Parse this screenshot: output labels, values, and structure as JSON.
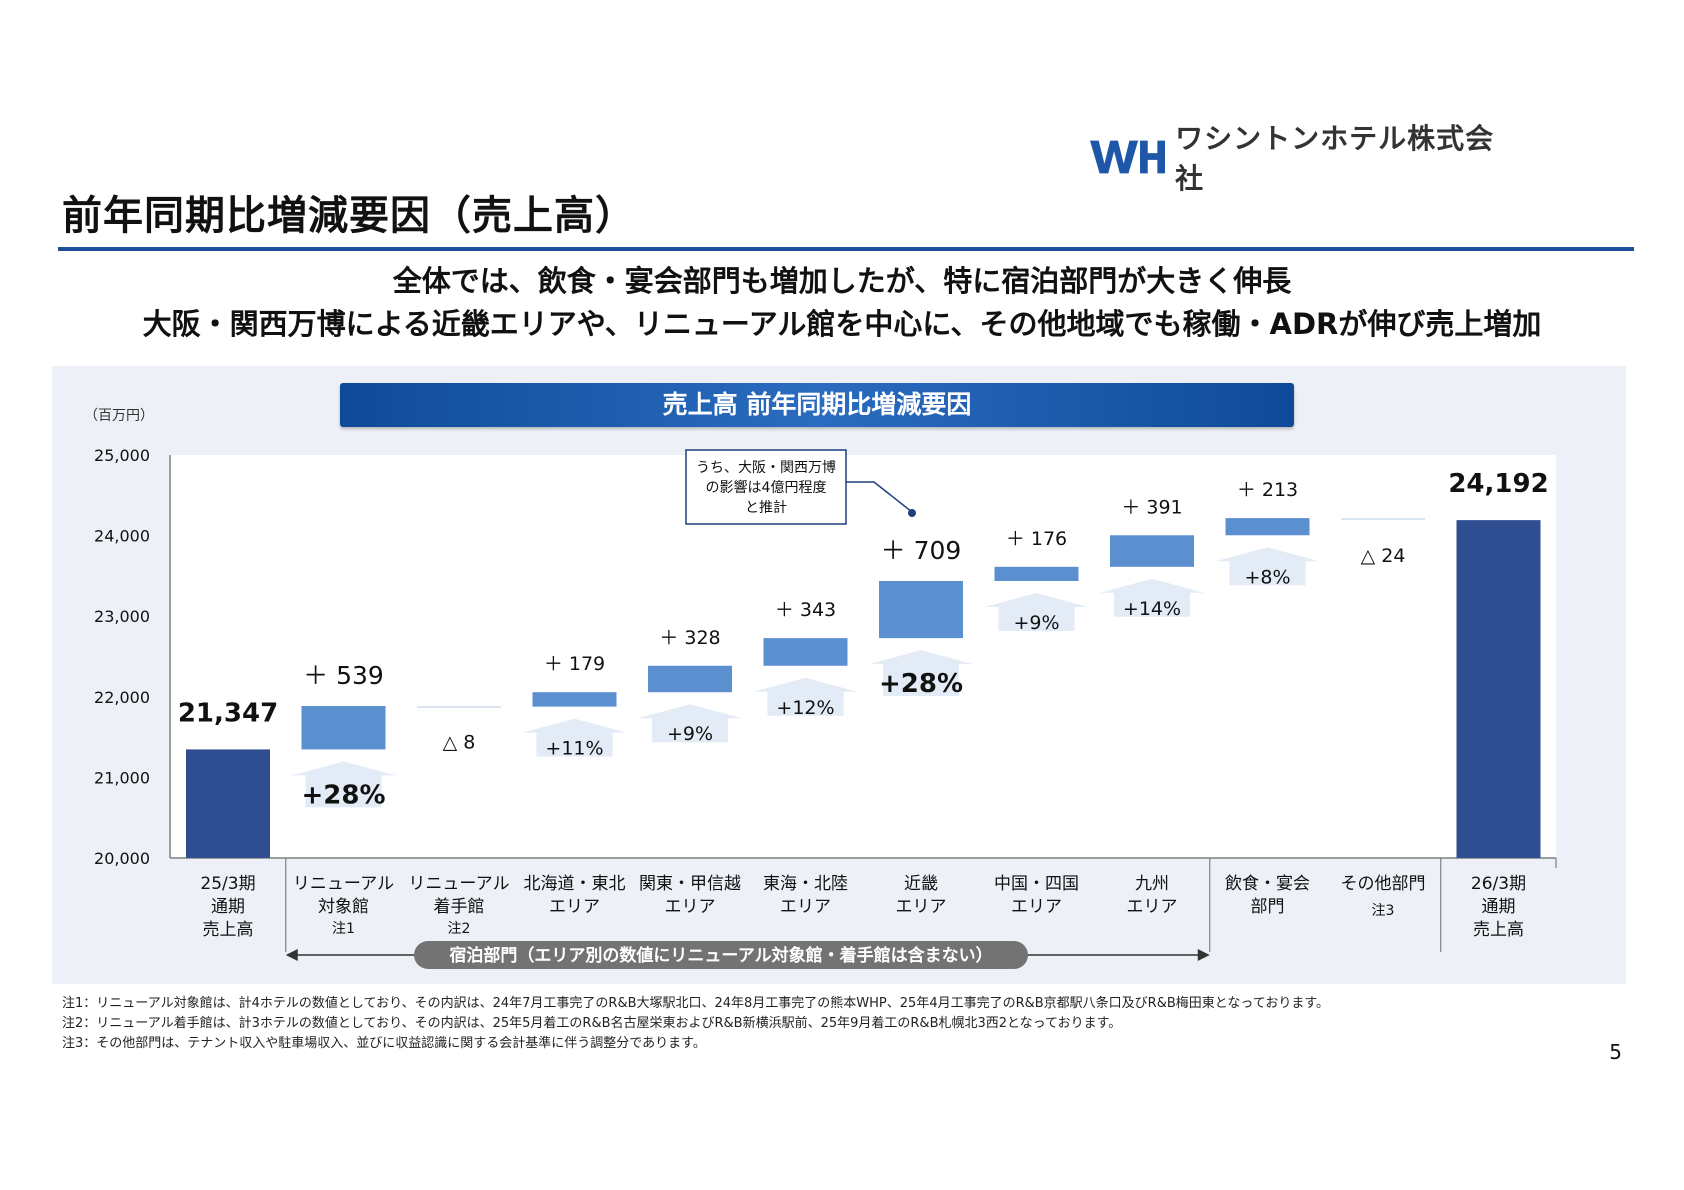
{
  "header": {
    "logo_text": "ワシントンホテル株式会社",
    "page_title": "前年同期比増減要因（売上高）",
    "headline_lines": [
      "全体では、飲食・宴会部門も増加したが、特に宿泊部門が大きく伸長",
      "大阪・関西万博による近畿エリアや、リニューアル館を中心に、その他地域でも稼働・ADRが伸び売上増加"
    ]
  },
  "colors": {
    "accent": "#1f4f9c",
    "total_bar": "#2e4e91",
    "change_bar": "#5b8fd0",
    "panel_bg": "#edf1f7",
    "segment_label_bg": "#737373"
  },
  "chart_data": {
    "type": "bar",
    "subtype": "waterfall",
    "title": "売上高 前年同期比増減要因",
    "unit": "（百万円）",
    "ylim": [
      20000,
      25000
    ],
    "yticks": [
      "20,000",
      "21,000",
      "22,000",
      "23,000",
      "24,000",
      "25,000"
    ],
    "grid": false,
    "categories": [
      {
        "lines": [
          "25/3期",
          "通期",
          "売上高"
        ],
        "note": ""
      },
      {
        "lines": [
          "リニューアル",
          "対象館"
        ],
        "note": "注1"
      },
      {
        "lines": [
          "リニューアル",
          "着手館"
        ],
        "note": "注2"
      },
      {
        "lines": [
          "北海道・東北",
          "エリア"
        ],
        "note": ""
      },
      {
        "lines": [
          "関東・甲信越",
          "エリア"
        ],
        "note": ""
      },
      {
        "lines": [
          "東海・北陸",
          "エリア"
        ],
        "note": ""
      },
      {
        "lines": [
          "近畿",
          "エリア"
        ],
        "note": ""
      },
      {
        "lines": [
          "中国・四国",
          "エリア"
        ],
        "note": ""
      },
      {
        "lines": [
          "九州",
          "エリア"
        ],
        "note": ""
      },
      {
        "lines": [
          "飲食・宴会",
          "部門"
        ],
        "note": ""
      },
      {
        "lines": [
          "その他部門"
        ],
        "note": "注3"
      },
      {
        "lines": [
          "26/3期",
          "通期",
          "売上高"
        ],
        "note": ""
      }
    ],
    "bars": [
      {
        "kind": "total",
        "start": 20000,
        "end": 21347,
        "value_label": "21,347",
        "pct_label": ""
      },
      {
        "kind": "change",
        "start": 21347,
        "end": 21886,
        "value_label": "＋ 539",
        "pct_label": "+28%"
      },
      {
        "kind": "change",
        "start": 21886,
        "end": 21878,
        "value_label": "△ 8",
        "pct_label": ""
      },
      {
        "kind": "change",
        "start": 21878,
        "end": 22057,
        "value_label": "＋ 179",
        "pct_label": "+11%"
      },
      {
        "kind": "change",
        "start": 22057,
        "end": 22385,
        "value_label": "＋ 328",
        "pct_label": "+9%"
      },
      {
        "kind": "change",
        "start": 22385,
        "end": 22728,
        "value_label": "＋ 343",
        "pct_label": "+12%"
      },
      {
        "kind": "change",
        "start": 22728,
        "end": 23437,
        "value_label": "＋ 709",
        "pct_label": "+28%"
      },
      {
        "kind": "change",
        "start": 23437,
        "end": 23613,
        "value_label": "＋ 176",
        "pct_label": "+9%"
      },
      {
        "kind": "change",
        "start": 23613,
        "end": 24004,
        "value_label": "＋ 391",
        "pct_label": "+14%"
      },
      {
        "kind": "change",
        "start": 24004,
        "end": 24217,
        "value_label": "＋ 213",
        "pct_label": "+8%"
      },
      {
        "kind": "change",
        "start": 24217,
        "end": 24193,
        "value_label": "△ 24",
        "pct_label": ""
      },
      {
        "kind": "total",
        "start": 20000,
        "end": 24192,
        "value_label": "24,192",
        "pct_label": ""
      }
    ],
    "annotation": {
      "lines": [
        "うち、大阪・関西万博",
        "の影響は4億円程度",
        "と推計"
      ],
      "target_index": 6
    },
    "segment_label": "宿泊部門（エリア別の数値にリニューアル対象館・着手館は含まない）"
  },
  "footnotes": [
    "注1：リニューアル対象館は、計4ホテルの数値としており、その内訳は、24年7月工事完了のR&B大塚駅北口、24年8月工事完了の熊本WHP、25年4月工事完了のR&B京都駅八条口及びR&B梅田東となっております。",
    "注2：リニューアル着手館は、計3ホテルの数値としており、その内訳は、25年5月着工のR&B名古屋栄東およびR&B新横浜駅前、25年9月着工のR&B札幌北3西2となっております。",
    "注3：その他部門は、テナント収入や駐車場収入、並びに収益認識に関する会計基準に伴う調整分であります。"
  ],
  "page_number": "5"
}
